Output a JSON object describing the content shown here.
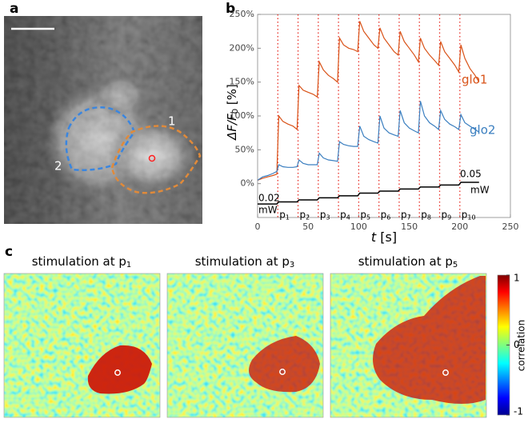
{
  "panel_labels": [
    "a",
    "b",
    "c"
  ],
  "image_a": {
    "region_labels": [
      "1",
      "2"
    ]
  },
  "chart_data": {
    "type": "line",
    "x": [
      0,
      5,
      10,
      15,
      19,
      21,
      25,
      30,
      35,
      39,
      41,
      45,
      50,
      55,
      59,
      61,
      65,
      70,
      75,
      79,
      81,
      85,
      90,
      95,
      99,
      101,
      105,
      110,
      115,
      119,
      121,
      125,
      130,
      135,
      139,
      141,
      145,
      150,
      155,
      159,
      161,
      165,
      170,
      175,
      179,
      181,
      185,
      190,
      195,
      199,
      201,
      205,
      210,
      215,
      219
    ],
    "series": [
      {
        "name": "glo1",
        "color": "#d95319",
        "values": [
          5,
          8,
          10,
          12,
          14,
          100,
          92,
          88,
          85,
          80,
          145,
          138,
          135,
          132,
          128,
          180,
          168,
          160,
          155,
          150,
          215,
          205,
          200,
          198,
          195,
          240,
          225,
          215,
          205,
          200,
          230,
          215,
          205,
          195,
          190,
          225,
          210,
          200,
          190,
          180,
          215,
          200,
          190,
          182,
          175,
          210,
          195,
          185,
          175,
          165,
          205,
          185,
          170,
          160,
          150
        ]
      },
      {
        "name": "glo2",
        "color": "#3b7fc0",
        "values": [
          5,
          10,
          12,
          15,
          18,
          28,
          25,
          24,
          24,
          25,
          35,
          30,
          28,
          28,
          28,
          45,
          38,
          35,
          34,
          33,
          62,
          58,
          56,
          55,
          55,
          85,
          70,
          65,
          62,
          60,
          100,
          82,
          75,
          72,
          70,
          108,
          90,
          82,
          78,
          75,
          122,
          100,
          90,
          85,
          80,
          108,
          95,
          88,
          84,
          80,
          102,
          90,
          85,
          80,
          76
        ]
      },
      {
        "color": "#000000",
        "values": [
          -30,
          -30,
          -30,
          -30,
          -30,
          -27,
          -27,
          -27,
          -27,
          -27,
          -24,
          -24,
          -24,
          -24,
          -24,
          -21,
          -21,
          -21,
          -21,
          -21,
          -18,
          -18,
          -18,
          -18,
          -18,
          -14,
          -14,
          -14,
          -14,
          -14,
          -11,
          -11,
          -11,
          -11,
          -11,
          -8,
          -8,
          -8,
          -8,
          -8,
          -5,
          -5,
          -5,
          -5,
          -5,
          -2,
          -2,
          -2,
          -2,
          -2,
          2,
          2,
          2,
          2,
          2
        ]
      }
    ],
    "xlim": [
      0,
      250
    ],
    "xticks": [
      0,
      50,
      100,
      150,
      200,
      250
    ],
    "ylim": [
      -50,
      250
    ],
    "yticks": [
      {
        "value": 0,
        "label": "0%"
      },
      {
        "value": 50,
        "label": "50%"
      },
      {
        "value": 100,
        "label": "100%"
      },
      {
        "value": 150,
        "label": "150%"
      },
      {
        "value": 200,
        "label": "200%"
      },
      {
        "value": 250,
        "label": "250%"
      }
    ],
    "xlabel": {
      "var": "t",
      "unit": " [s]"
    },
    "ylabel": {
      "var": "ΔF/F",
      "sub": "0",
      "unit": " [%]"
    },
    "stimulus_times": [
      20,
      40,
      60,
      80,
      100,
      120,
      140,
      160,
      180,
      200
    ],
    "stimulus_labels": [
      {
        "base": "p",
        "sub": "1"
      },
      {
        "base": "p",
        "sub": "2"
      },
      {
        "base": "p",
        "sub": "3"
      },
      {
        "base": "p",
        "sub": "4"
      },
      {
        "base": "p",
        "sub": "5"
      },
      {
        "base": "p",
        "sub": "6"
      },
      {
        "base": "p",
        "sub": "7"
      },
      {
        "base": "p",
        "sub": "8"
      },
      {
        "base": "p",
        "sub": "9"
      },
      {
        "base": "p",
        "sub": "10"
      }
    ],
    "stimulus_color": "#e8322a",
    "start_power": [
      "0.02",
      "mW"
    ],
    "end_power": [
      "0.05",
      "mW"
    ]
  },
  "heatmaps": {
    "titles": [
      {
        "text": "stimulation at p",
        "sub": "1"
      },
      {
        "text": "stimulation at p",
        "sub": "3"
      },
      {
        "text": "stimulation at p",
        "sub": "5"
      }
    ],
    "colorbar": {
      "clim": [
        -1,
        1
      ],
      "ticks": [
        1,
        0,
        -1
      ],
      "label": "correlation"
    }
  }
}
